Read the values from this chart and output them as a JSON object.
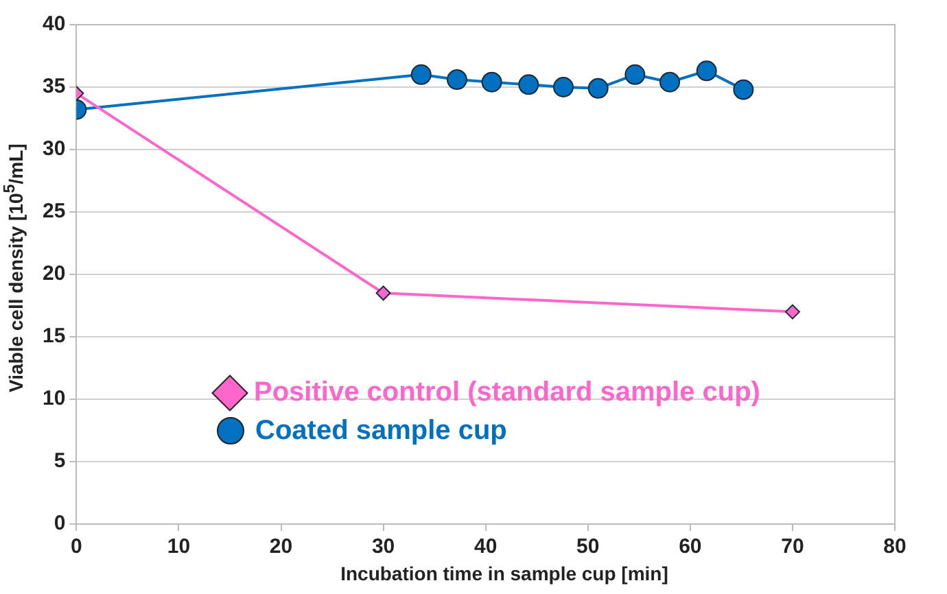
{
  "chart_data": {
    "type": "line",
    "xlabel": "Incubation time in sample cup [min]",
    "ylabel": "Viable cell density [10$^{5}$/mL]",
    "series": [
      {
        "name": "Positive control (standard sample cup)",
        "color": "#ff66cc",
        "marker": "diamond",
        "x": [
          0,
          30,
          70
        ],
        "values": [
          34.5,
          18.5,
          17
        ]
      },
      {
        "name": "Coated sample cup",
        "color": "#0070c0",
        "marker": "circle",
        "x": [
          0,
          33.7,
          37.2,
          40.6,
          44.2,
          47.6,
          51.0,
          54.6,
          58.0,
          61.6,
          65.2
        ],
        "values": [
          33.2,
          36.0,
          35.6,
          35.4,
          35.2,
          35.0,
          34.9,
          36.0,
          35.4,
          36.3,
          34.8
        ]
      }
    ],
    "xlim": [
      0,
      80
    ],
    "xticks": [
      0,
      10,
      20,
      30,
      40,
      50,
      60,
      70,
      80
    ],
    "ylim": [
      0,
      40
    ],
    "yticks": [
      0,
      5,
      10,
      15,
      20,
      25,
      30,
      35,
      40
    ],
    "grid": "y",
    "legend": "bottom"
  }
}
